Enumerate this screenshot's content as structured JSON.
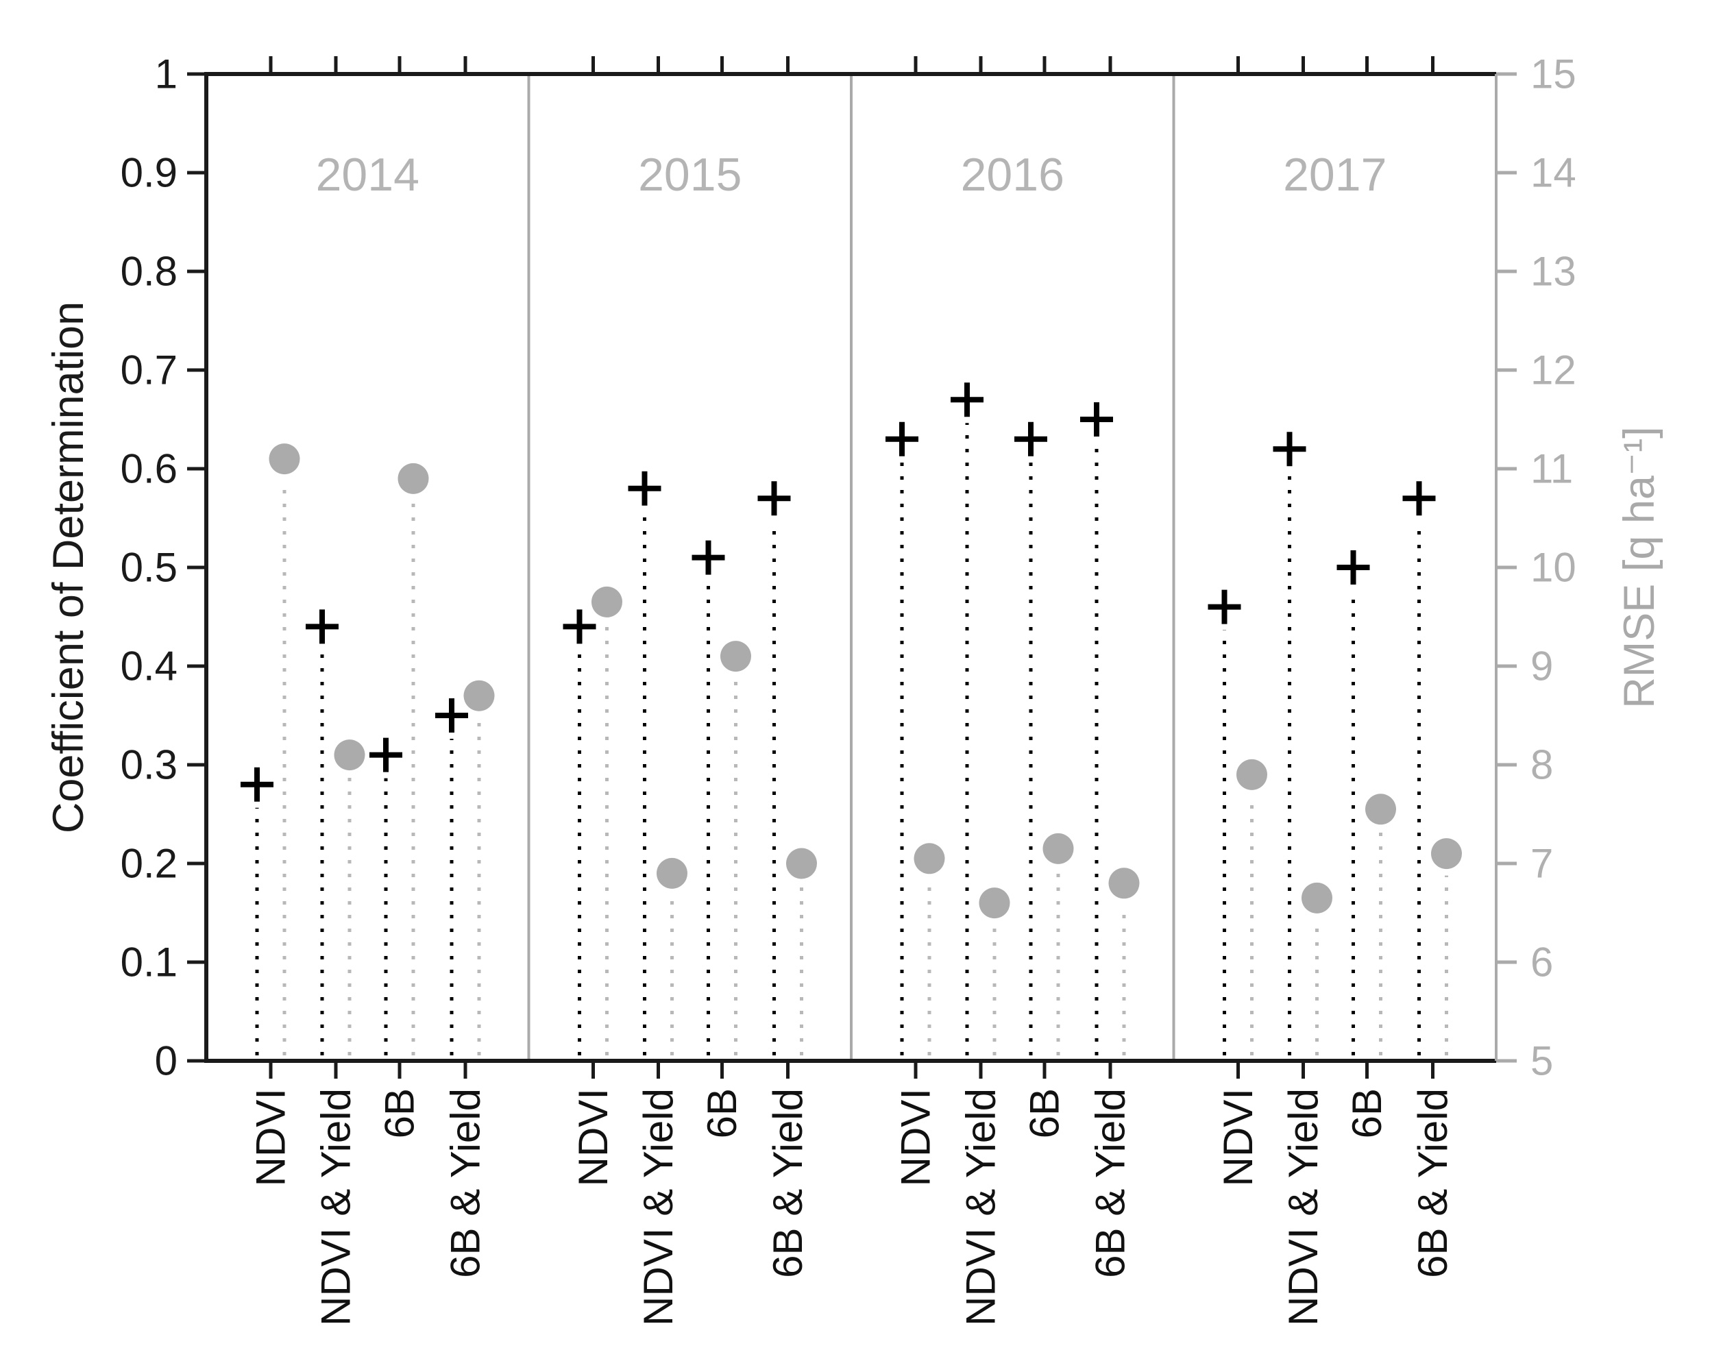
{
  "chart_data": {
    "type": "scatter",
    "title": "",
    "description": "Stem plot with plus markers (Coefficient of Determination, left axis) and gray circle markers (RMSE, right axis) for four predictor sets across four year panels",
    "panels": [
      "2014",
      "2015",
      "2016",
      "2017"
    ],
    "categories": [
      "NDVI",
      "NDVI & Yield",
      "6B",
      "6B & Yield"
    ],
    "left_axis": {
      "label": "Coefficient of Determination",
      "range": [
        0,
        1
      ],
      "tick_values": [
        1,
        0.9,
        0.8,
        0.7,
        0.6,
        0.5,
        0.4,
        0.3,
        0.2,
        0.1,
        0
      ],
      "tick_labels": [
        "1",
        "0.9",
        "0.8",
        "0.7",
        "0.6",
        "0.5",
        "0.4",
        "0.3",
        "0.2",
        "0.1",
        "0"
      ]
    },
    "right_axis": {
      "label": "RMSE  [q ha⁻¹]",
      "range": [
        5,
        15
      ],
      "tick_values": [
        15,
        14,
        13,
        12,
        11,
        10,
        9,
        8,
        7,
        6,
        5
      ],
      "tick_labels": [
        "15",
        "14",
        "13",
        "12",
        "11",
        "10",
        "9",
        "8",
        "7",
        "6",
        "5"
      ]
    },
    "series": [
      {
        "name": "Coefficient of Determination",
        "axis": "left",
        "marker": "plus",
        "color": "#000000",
        "values_by_panel": [
          [
            0.28,
            0.44,
            0.31,
            0.35
          ],
          [
            0.44,
            0.58,
            0.51,
            0.57
          ],
          [
            0.63,
            0.67,
            0.63,
            0.65
          ],
          [
            0.46,
            0.62,
            0.5,
            0.57
          ]
        ]
      },
      {
        "name": "RMSE",
        "axis": "right",
        "marker": "circle",
        "color": "#ababab",
        "values_by_panel": [
          [
            11.1,
            8.1,
            10.9,
            8.7
          ],
          [
            9.65,
            6.9,
            9.1,
            7.0
          ],
          [
            7.05,
            6.6,
            7.15,
            6.8
          ],
          [
            7.9,
            6.65,
            7.55,
            7.1
          ]
        ]
      }
    ],
    "layout_hints": {
      "grid": "off",
      "legend": "none",
      "stems": "dotted vertical lines from x-axis up to each marker",
      "year_label_position": "top center of each panel"
    },
    "colors": {
      "axis_black": "#1a1a1a",
      "axis_gray": "#aaaaaa",
      "marker_gray": "#ababab",
      "stem_gray": "#b8b8b8",
      "year_text": "#b4b4b4",
      "right_text": "#b0b0b0"
    }
  }
}
